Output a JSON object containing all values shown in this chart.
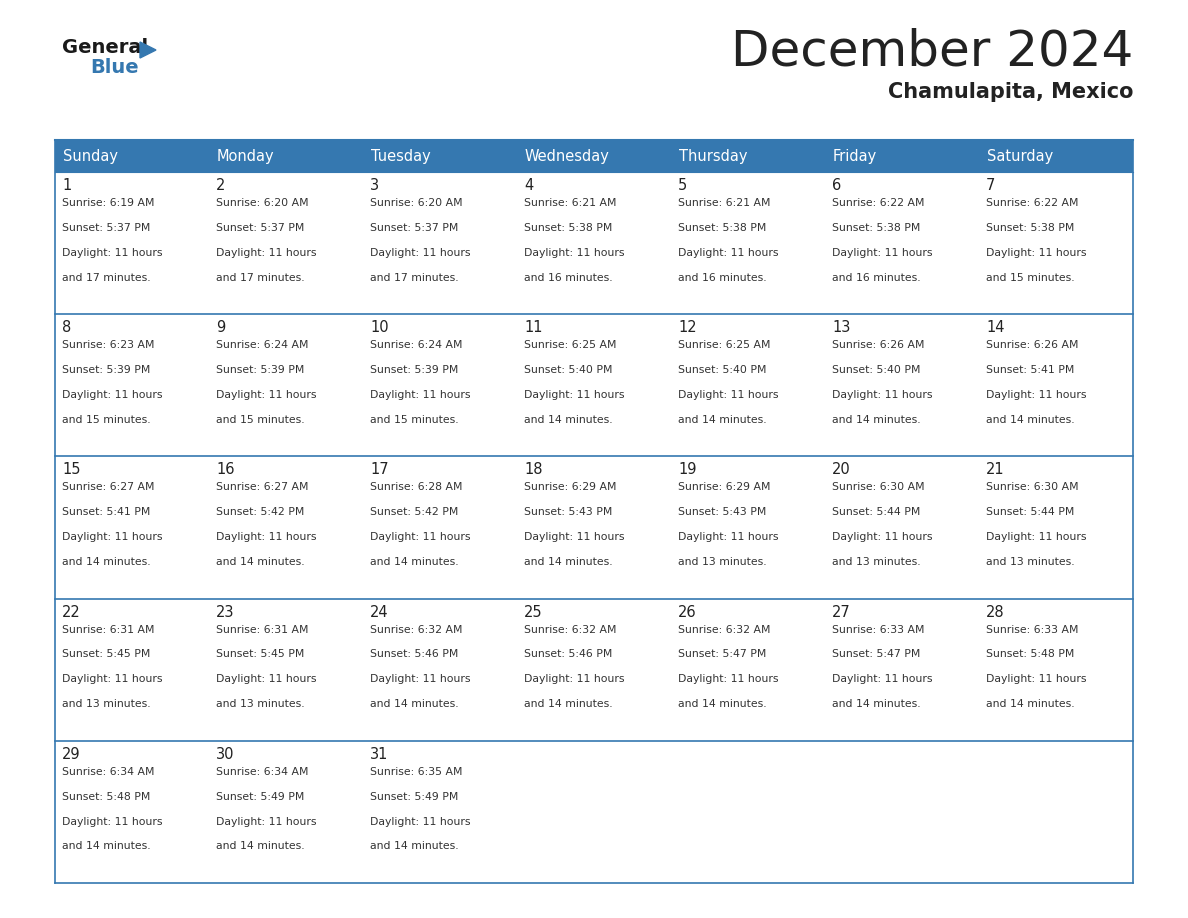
{
  "title": "December 2024",
  "subtitle": "Chamulapita, Mexico",
  "header_color": "#3578b0",
  "header_text_color": "#ffffff",
  "border_color": "#3578b0",
  "text_color": "#222222",
  "cell_text_color": "#333333",
  "days_of_week": [
    "Sunday",
    "Monday",
    "Tuesday",
    "Wednesday",
    "Thursday",
    "Friday",
    "Saturday"
  ],
  "calendar": [
    [
      {
        "day": 1,
        "sunrise": "6:19 AM",
        "sunset": "5:37 PM",
        "daylight": "11 hours and 17 minutes."
      },
      {
        "day": 2,
        "sunrise": "6:20 AM",
        "sunset": "5:37 PM",
        "daylight": "11 hours and 17 minutes."
      },
      {
        "day": 3,
        "sunrise": "6:20 AM",
        "sunset": "5:37 PM",
        "daylight": "11 hours and 17 minutes."
      },
      {
        "day": 4,
        "sunrise": "6:21 AM",
        "sunset": "5:38 PM",
        "daylight": "11 hours and 16 minutes."
      },
      {
        "day": 5,
        "sunrise": "6:21 AM",
        "sunset": "5:38 PM",
        "daylight": "11 hours and 16 minutes."
      },
      {
        "day": 6,
        "sunrise": "6:22 AM",
        "sunset": "5:38 PM",
        "daylight": "11 hours and 16 minutes."
      },
      {
        "day": 7,
        "sunrise": "6:22 AM",
        "sunset": "5:38 PM",
        "daylight": "11 hours and 15 minutes."
      }
    ],
    [
      {
        "day": 8,
        "sunrise": "6:23 AM",
        "sunset": "5:39 PM",
        "daylight": "11 hours and 15 minutes."
      },
      {
        "day": 9,
        "sunrise": "6:24 AM",
        "sunset": "5:39 PM",
        "daylight": "11 hours and 15 minutes."
      },
      {
        "day": 10,
        "sunrise": "6:24 AM",
        "sunset": "5:39 PM",
        "daylight": "11 hours and 15 minutes."
      },
      {
        "day": 11,
        "sunrise": "6:25 AM",
        "sunset": "5:40 PM",
        "daylight": "11 hours and 14 minutes."
      },
      {
        "day": 12,
        "sunrise": "6:25 AM",
        "sunset": "5:40 PM",
        "daylight": "11 hours and 14 minutes."
      },
      {
        "day": 13,
        "sunrise": "6:26 AM",
        "sunset": "5:40 PM",
        "daylight": "11 hours and 14 minutes."
      },
      {
        "day": 14,
        "sunrise": "6:26 AM",
        "sunset": "5:41 PM",
        "daylight": "11 hours and 14 minutes."
      }
    ],
    [
      {
        "day": 15,
        "sunrise": "6:27 AM",
        "sunset": "5:41 PM",
        "daylight": "11 hours and 14 minutes."
      },
      {
        "day": 16,
        "sunrise": "6:27 AM",
        "sunset": "5:42 PM",
        "daylight": "11 hours and 14 minutes."
      },
      {
        "day": 17,
        "sunrise": "6:28 AM",
        "sunset": "5:42 PM",
        "daylight": "11 hours and 14 minutes."
      },
      {
        "day": 18,
        "sunrise": "6:29 AM",
        "sunset": "5:43 PM",
        "daylight": "11 hours and 14 minutes."
      },
      {
        "day": 19,
        "sunrise": "6:29 AM",
        "sunset": "5:43 PM",
        "daylight": "11 hours and 13 minutes."
      },
      {
        "day": 20,
        "sunrise": "6:30 AM",
        "sunset": "5:44 PM",
        "daylight": "11 hours and 13 minutes."
      },
      {
        "day": 21,
        "sunrise": "6:30 AM",
        "sunset": "5:44 PM",
        "daylight": "11 hours and 13 minutes."
      }
    ],
    [
      {
        "day": 22,
        "sunrise": "6:31 AM",
        "sunset": "5:45 PM",
        "daylight": "11 hours and 13 minutes."
      },
      {
        "day": 23,
        "sunrise": "6:31 AM",
        "sunset": "5:45 PM",
        "daylight": "11 hours and 13 minutes."
      },
      {
        "day": 24,
        "sunrise": "6:32 AM",
        "sunset": "5:46 PM",
        "daylight": "11 hours and 14 minutes."
      },
      {
        "day": 25,
        "sunrise": "6:32 AM",
        "sunset": "5:46 PM",
        "daylight": "11 hours and 14 minutes."
      },
      {
        "day": 26,
        "sunrise": "6:32 AM",
        "sunset": "5:47 PM",
        "daylight": "11 hours and 14 minutes."
      },
      {
        "day": 27,
        "sunrise": "6:33 AM",
        "sunset": "5:47 PM",
        "daylight": "11 hours and 14 minutes."
      },
      {
        "day": 28,
        "sunrise": "6:33 AM",
        "sunset": "5:48 PM",
        "daylight": "11 hours and 14 minutes."
      }
    ],
    [
      {
        "day": 29,
        "sunrise": "6:34 AM",
        "sunset": "5:48 PM",
        "daylight": "11 hours and 14 minutes."
      },
      {
        "day": 30,
        "sunrise": "6:34 AM",
        "sunset": "5:49 PM",
        "daylight": "11 hours and 14 minutes."
      },
      {
        "day": 31,
        "sunrise": "6:35 AM",
        "sunset": "5:49 PM",
        "daylight": "11 hours and 14 minutes."
      },
      null,
      null,
      null,
      null
    ]
  ],
  "logo_general_color": "#1a1a1a",
  "logo_blue_color": "#3578b0",
  "logo_triangle_color": "#3578b0"
}
